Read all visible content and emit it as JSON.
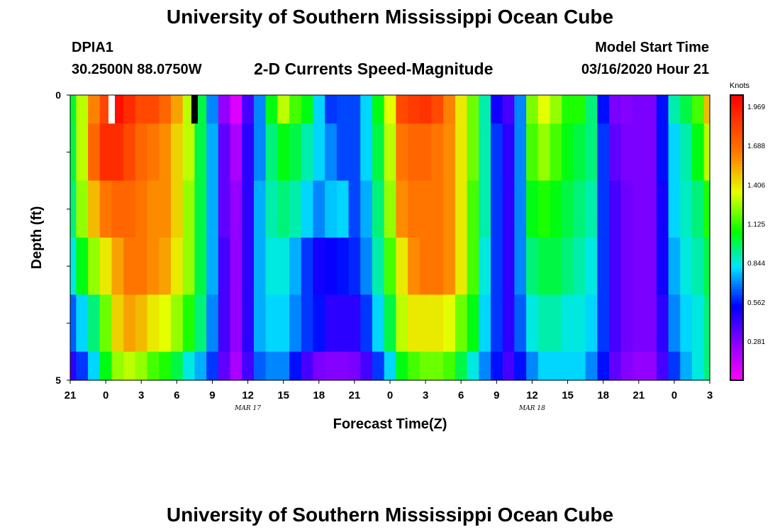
{
  "header": {
    "title_top": "University of Southern Mississippi Ocean Cube",
    "station": "DPIA1",
    "coords": "30.2500N 88.0750W",
    "subtitle": "2-D Currents Speed-Magnitude",
    "model_start_label": "Model Start Time",
    "model_start_value": "03/16/2020 Hour 21",
    "title_bottom": "University of Southern Mississippi Ocean Cube"
  },
  "chart_data": {
    "type": "heatmap",
    "title": "2-D Currents Speed-Magnitude",
    "xlabel": "Forecast Time(Z)",
    "ylabel": "Depth (ft)",
    "colorbar_label": "Knots",
    "x_hours": [
      0,
      1,
      2,
      3,
      4,
      5,
      6,
      7,
      8,
      9,
      10,
      11,
      12,
      13,
      14,
      15,
      16,
      17,
      18,
      19,
      20,
      21,
      22,
      23,
      24,
      25,
      26,
      27,
      28,
      29,
      30,
      31,
      32,
      33,
      34,
      35,
      36,
      37,
      38,
      39,
      40,
      41,
      42,
      43,
      44,
      45,
      46,
      47,
      48,
      49,
      50,
      51,
      52,
      53,
      54
    ],
    "x_tick_hours": [
      0,
      3,
      6,
      9,
      12,
      15,
      18,
      21,
      24,
      27,
      30,
      33,
      36,
      39,
      42,
      45,
      48,
      51,
      54
    ],
    "x_tick_labels": [
      "21",
      "0",
      "3",
      "6",
      "9",
      "12",
      "15",
      "18",
      "21",
      "0",
      "3",
      "6",
      "9",
      "12",
      "15",
      "18",
      "21",
      "0",
      "3"
    ],
    "date_labels": [
      {
        "hour": 15,
        "text": "MAR 17"
      },
      {
        "hour": 39,
        "text": "MAR 18"
      }
    ],
    "depth_levels": [
      0,
      1,
      2,
      3,
      4,
      5
    ],
    "y_tick_labels": [
      "0",
      "",
      "",
      "",
      "",
      "5"
    ],
    "ylim": [
      0,
      5
    ],
    "colorbar_ticks": [
      0.281,
      0.562,
      0.844,
      1.125,
      1.406,
      1.688,
      1.969
    ],
    "colorbar_tick_labels": [
      "0.281",
      "0.562",
      "0.844",
      "1.125",
      "1.406",
      "1.688",
      "1.969"
    ],
    "vmin": 0.0,
    "vmax": 2.05,
    "speed_by_depth_layer": [
      [
        1.02,
        1.3,
        1.62,
        1.82,
        2.0,
        1.9,
        1.8,
        1.8,
        1.7,
        1.55,
        1.3,
        1.0,
        0.7,
        0.25,
        0.08,
        0.4,
        0.7,
        1.05,
        1.3,
        1.15,
        1.05,
        0.8,
        0.6,
        0.62,
        0.62,
        0.8,
        1.05,
        1.35,
        1.8,
        1.85,
        1.88,
        1.8,
        1.62,
        1.4,
        1.2,
        0.9,
        0.5,
        0.4,
        0.7,
        1.22,
        1.35,
        1.25,
        1.1,
        1.1,
        0.95,
        0.55,
        0.3,
        0.28,
        0.3,
        0.3,
        0.55,
        0.9,
        1.0,
        1.15,
        1.5
      ],
      [
        1.0,
        1.3,
        1.7,
        1.9,
        1.9,
        1.8,
        1.7,
        1.65,
        1.6,
        1.45,
        1.3,
        1.0,
        0.75,
        0.35,
        0.2,
        0.45,
        0.7,
        0.95,
        1.05,
        1.0,
        0.9,
        0.8,
        0.7,
        0.62,
        0.62,
        0.8,
        1.0,
        1.3,
        1.65,
        1.7,
        1.7,
        1.65,
        1.6,
        1.4,
        1.2,
        0.9,
        0.6,
        0.45,
        0.7,
        1.15,
        1.25,
        1.15,
        1.05,
        1.0,
        0.95,
        0.6,
        0.35,
        0.3,
        0.3,
        0.3,
        0.55,
        0.8,
        0.9,
        1.05,
        1.3
      ],
      [
        0.95,
        1.25,
        1.5,
        1.65,
        1.7,
        1.7,
        1.65,
        1.6,
        1.6,
        1.45,
        1.25,
        1.0,
        0.75,
        0.35,
        0.25,
        0.45,
        0.75,
        0.9,
        0.95,
        0.9,
        0.8,
        0.7,
        0.78,
        0.8,
        0.62,
        0.75,
        0.95,
        1.25,
        1.6,
        1.65,
        1.65,
        1.65,
        1.6,
        1.4,
        1.15,
        0.9,
        0.6,
        0.45,
        0.7,
        1.05,
        1.1,
        1.05,
        1.0,
        0.95,
        0.9,
        0.6,
        0.4,
        0.32,
        0.3,
        0.3,
        0.5,
        0.8,
        0.88,
        0.95,
        1.1
      ],
      [
        0.85,
        1.05,
        1.25,
        1.4,
        1.55,
        1.65,
        1.65,
        1.6,
        1.55,
        1.4,
        1.25,
        1.0,
        0.75,
        0.4,
        0.25,
        0.45,
        0.75,
        0.85,
        0.85,
        0.75,
        0.6,
        0.5,
        0.52,
        0.55,
        0.58,
        0.7,
        0.9,
        1.15,
        1.4,
        1.6,
        1.65,
        1.65,
        1.6,
        1.4,
        1.15,
        0.85,
        0.6,
        0.45,
        0.7,
        0.95,
        1.0,
        1.0,
        0.95,
        0.9,
        0.85,
        0.6,
        0.4,
        0.32,
        0.3,
        0.3,
        0.5,
        0.75,
        0.85,
        0.9,
        1.0
      ],
      [
        0.65,
        0.8,
        0.95,
        1.2,
        1.45,
        1.55,
        1.5,
        1.4,
        1.35,
        1.25,
        1.1,
        0.95,
        0.7,
        0.4,
        0.25,
        0.45,
        0.75,
        0.8,
        0.8,
        0.7,
        0.6,
        0.55,
        0.45,
        0.45,
        0.45,
        0.6,
        0.8,
        1.0,
        1.3,
        1.4,
        1.4,
        1.4,
        1.35,
        1.2,
        1.05,
        0.8,
        0.6,
        0.45,
        0.65,
        0.85,
        0.9,
        0.9,
        0.85,
        0.85,
        0.8,
        0.6,
        0.4,
        0.32,
        0.3,
        0.3,
        0.45,
        0.7,
        0.8,
        0.85,
        0.95
      ],
      [
        0.45,
        0.6,
        0.8,
        1.05,
        1.25,
        1.3,
        1.25,
        1.15,
        1.1,
        1.0,
        0.85,
        0.75,
        0.6,
        0.35,
        0.2,
        0.4,
        0.65,
        0.7,
        0.7,
        0.55,
        0.4,
        0.3,
        0.28,
        0.28,
        0.3,
        0.4,
        0.6,
        0.8,
        1.05,
        1.15,
        1.2,
        1.2,
        1.15,
        1.0,
        0.85,
        0.7,
        0.55,
        0.4,
        0.55,
        0.7,
        0.8,
        0.8,
        0.8,
        0.8,
        0.7,
        0.55,
        0.35,
        0.28,
        0.25,
        0.25,
        0.4,
        0.6,
        0.75,
        0.85,
        0.95
      ]
    ],
    "markers": [
      {
        "hour": 3.5,
        "color": "#ffffff"
      },
      {
        "hour": 10.5,
        "color": "#000000"
      }
    ]
  }
}
